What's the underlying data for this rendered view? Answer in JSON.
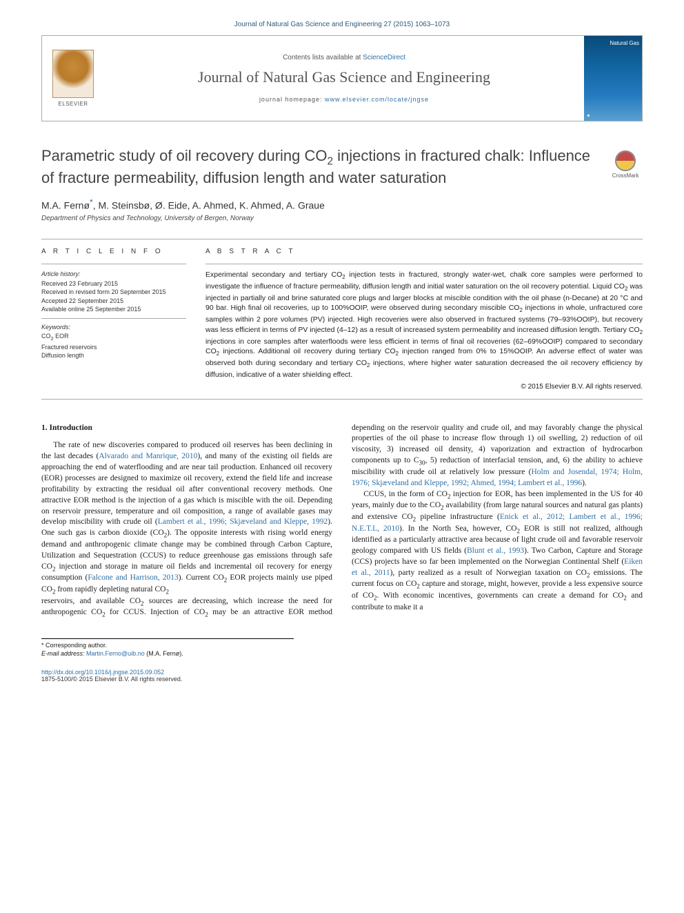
{
  "header": {
    "top_citation": "Journal of Natural Gas Science and Engineering 27 (2015) 1063–1073",
    "contents_prefix": "Contents lists available at ",
    "contents_link": "ScienceDirect",
    "journal_name": "Journal of Natural Gas Science and Engineering",
    "homepage_prefix": "journal homepage: ",
    "homepage_url": "www.elsevier.com/locate/jngse",
    "elsevier_label": "ELSEVIER",
    "cover_label": "Natural Gas"
  },
  "crossmark": {
    "label": "CrossMark"
  },
  "article": {
    "title_html": "Parametric study of oil recovery during CO<sub>2</sub> injections in fractured chalk: Influence of fracture permeability, diffusion length and water saturation",
    "authors_html": "M.A. Fernø<span class='star'>*</span>, M. Steinsbø, Ø. Eide, A. Ahmed, K. Ahmed, A. Graue",
    "affiliation": "Department of Physics and Technology, University of Bergen, Norway"
  },
  "info": {
    "section_label": "A R T I C L E   I N F O",
    "history_label": "Article history:",
    "received": "Received 23 February 2015",
    "revised": "Received in revised form 20 September 2015",
    "accepted": "Accepted 22 September 2015",
    "online": "Available online 25 September 2015",
    "keywords_label": "Keywords:",
    "kw1_html": "CO<sub>2</sub> EOR",
    "kw2": "Fractured reservoirs",
    "kw3": "Diffusion length"
  },
  "abstract": {
    "section_label": "A B S T R A C T",
    "text_html": "Experimental secondary and tertiary CO<sub>2</sub> injection tests in fractured, strongly water-wet, chalk core samples were performed to investigate the influence of fracture permeability, diffusion length and initial water saturation on the oil recovery potential. Liquid CO<sub>2</sub> was injected in partially oil and brine saturated core plugs and larger blocks at miscible condition with the oil phase (n-Decane) at 20 °C and 90 bar. High final oil recoveries, up to 100%OOIP, were observed during secondary miscible CO<sub>2</sub> injections in whole, unfractured core samples within 2 pore volumes (PV) injected. High recoveries were also observed in fractured systems (79–93%OOIP), but recovery was less efficient in terms of PV injected (4–12) as a result of increased system permeability and increased diffusion length. Tertiary CO<sub>2</sub> injections in core samples after waterfloods were less efficient in terms of final oil recoveries (62–69%OOIP) compared to secondary CO<sub>2</sub> injections. Additional oil recovery during tertiary CO<sub>2</sub> injection ranged from 0% to 15%OOIP. An adverse effect of water was observed both during secondary and tertiary CO<sub>2</sub> injections, where higher water saturation decreased the oil recovery efficiency by diffusion, indicative of a water shielding effect.",
    "copyright": "© 2015 Elsevier B.V. All rights reserved."
  },
  "body": {
    "intro_heading": "1. Introduction",
    "p1_html": "The rate of new discoveries compared to produced oil reserves has been declining in the last decades (<span class='ref'>Alvarado and Manrique, 2010</span>), and many of the existing oil fields are approaching the end of waterflooding and are near tail production. Enhanced oil recovery (EOR) processes are designed to maximize oil recovery, extend the field life and increase profitability by extracting the residual oil after conventional recovery methods. One attractive EOR method is the injection of a gas which is miscible with the oil. Depending on reservoir pressure, temperature and oil composition, a range of available gases may develop miscibility with crude oil (<span class='ref'>Lambert et al., 1996; Skjæveland and Kleppe, 1992</span>). One such gas is carbon dioxide (CO<sub>2</sub>). The opposite interests with rising world energy demand and anthropogenic climate change may be combined through Carbon Capture, Utilization and Sequestration (CCUS) to reduce greenhouse gas emissions through safe CO<sub>2</sub> injection and storage in mature oil fields and incremental oil recovery for energy consumption (<span class='ref'>Falcone and Harrison, 2013</span>). Current CO<sub>2</sub> EOR projects mainly use piped CO<sub>2</sub> from rapidly depleting natural CO<sub>2</sub>",
    "p2_html": "reservoirs, and available CO<sub>2</sub> sources are decreasing, which increase the need for anthropogenic CO<sub>2</sub> for CCUS. Injection of CO<sub>2</sub> may be an attractive EOR method depending on the reservoir quality and crude oil, and may favorably change the physical properties of the oil phase to increase flow through 1) oil swelling, 2) reduction of oil viscosity, 3) increased oil density, 4) vaporization and extraction of hydrocarbon components up to C<sub>30</sub>, 5) reduction of interfacial tension, and, 6) the ability to achieve miscibility with crude oil at relatively low pressure (<span class='ref'>Holm and Josendal, 1974; Holm, 1976; Skjæveland and Kleppe, 1992; Ahmed, 1994; Lambert et al., 1996</span>).",
    "p3_html": "CCUS, in the form of CO<sub>2</sub> injection for EOR, has been implemented in the US for 40 years, mainly due to the CO<sub>2</sub> availability (from large natural sources and natural gas plants) and extensive CO<sub>2</sub> pipeline infrastructure (<span class='ref'>Enick et al., 2012; Lambert et al., 1996; N.E.T.L, 2010</span>). In the North Sea, however, CO<sub>2</sub> EOR is still not realized, although identified as a particularly attractive area because of light crude oil and favorable reservoir geology compared with US fields (<span class='ref'>Blunt et al., 1993</span>). Two Carbon, Capture and Storage (CCS) projects have so far been implemented on the Norwegian Continental Shelf (<span class='ref'>Eiken et al., 2011</span>), party realized as a result of Norwegian taxation on CO<sub>2</sub> emissions. The current focus on CO<sub>2</sub> capture and storage, might, however, provide a less expensive source of CO<sub>2</sub>. With economic incentives, governments can create a demand for CO<sub>2</sub> and contribute to make it a"
  },
  "footnote": {
    "corr": "* Corresponding author.",
    "email_label": "E-mail address: ",
    "email": "Martin.Ferno@uib.no",
    "email_suffix": " (M.A. Fernø)."
  },
  "bottom": {
    "doi_url": "http://dx.doi.org/10.1016/j.jngse.2015.09.052",
    "issn_line": "1875-5100/© 2015 Elsevier B.V. All rights reserved."
  },
  "colors": {
    "link": "#2c6ea5",
    "text": "#1a1a1a",
    "rule": "#aaaaaa"
  }
}
